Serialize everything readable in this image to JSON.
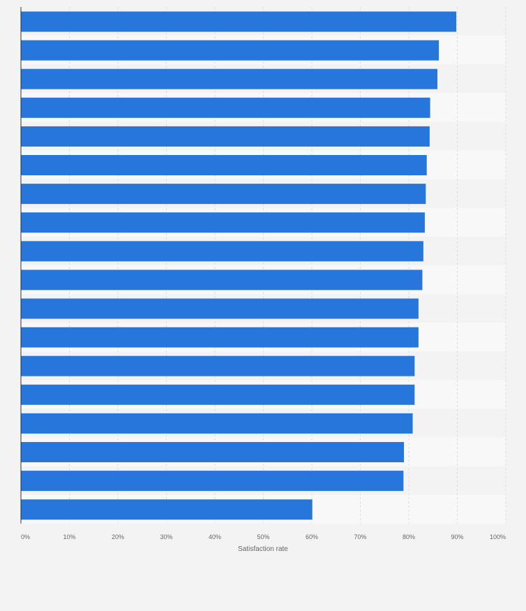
{
  "chart_data": {
    "type": "bar",
    "orientation": "horizontal",
    "title": "",
    "xlabel": "Satisfaction rate",
    "ylabel": "",
    "xlim": [
      0,
      100
    ],
    "x_ticks": [
      "0%",
      "10%",
      "20%",
      "30%",
      "40%",
      "50%",
      "60%",
      "70%",
      "80%",
      "90%",
      "100%"
    ],
    "categories": [
      "",
      "",
      "",
      "",
      "",
      "",
      "",
      "",
      "",
      "",
      "",
      "",
      "",
      "",
      "",
      "",
      "",
      ""
    ],
    "values": [
      89.8,
      86.2,
      85.9,
      84.4,
      84.3,
      83.7,
      83.5,
      83.3,
      83.0,
      82.8,
      82.0,
      82.0,
      81.2,
      81.2,
      80.8,
      79.0,
      78.9,
      60.1
    ],
    "unit": "%",
    "grid": true,
    "colors": {
      "bar": "#2776dc",
      "background": "#f3f3f3",
      "plot_band": "#f8f8f8",
      "grid": "#dddddd",
      "axis": "#333333",
      "tick_text": "#666666"
    }
  }
}
